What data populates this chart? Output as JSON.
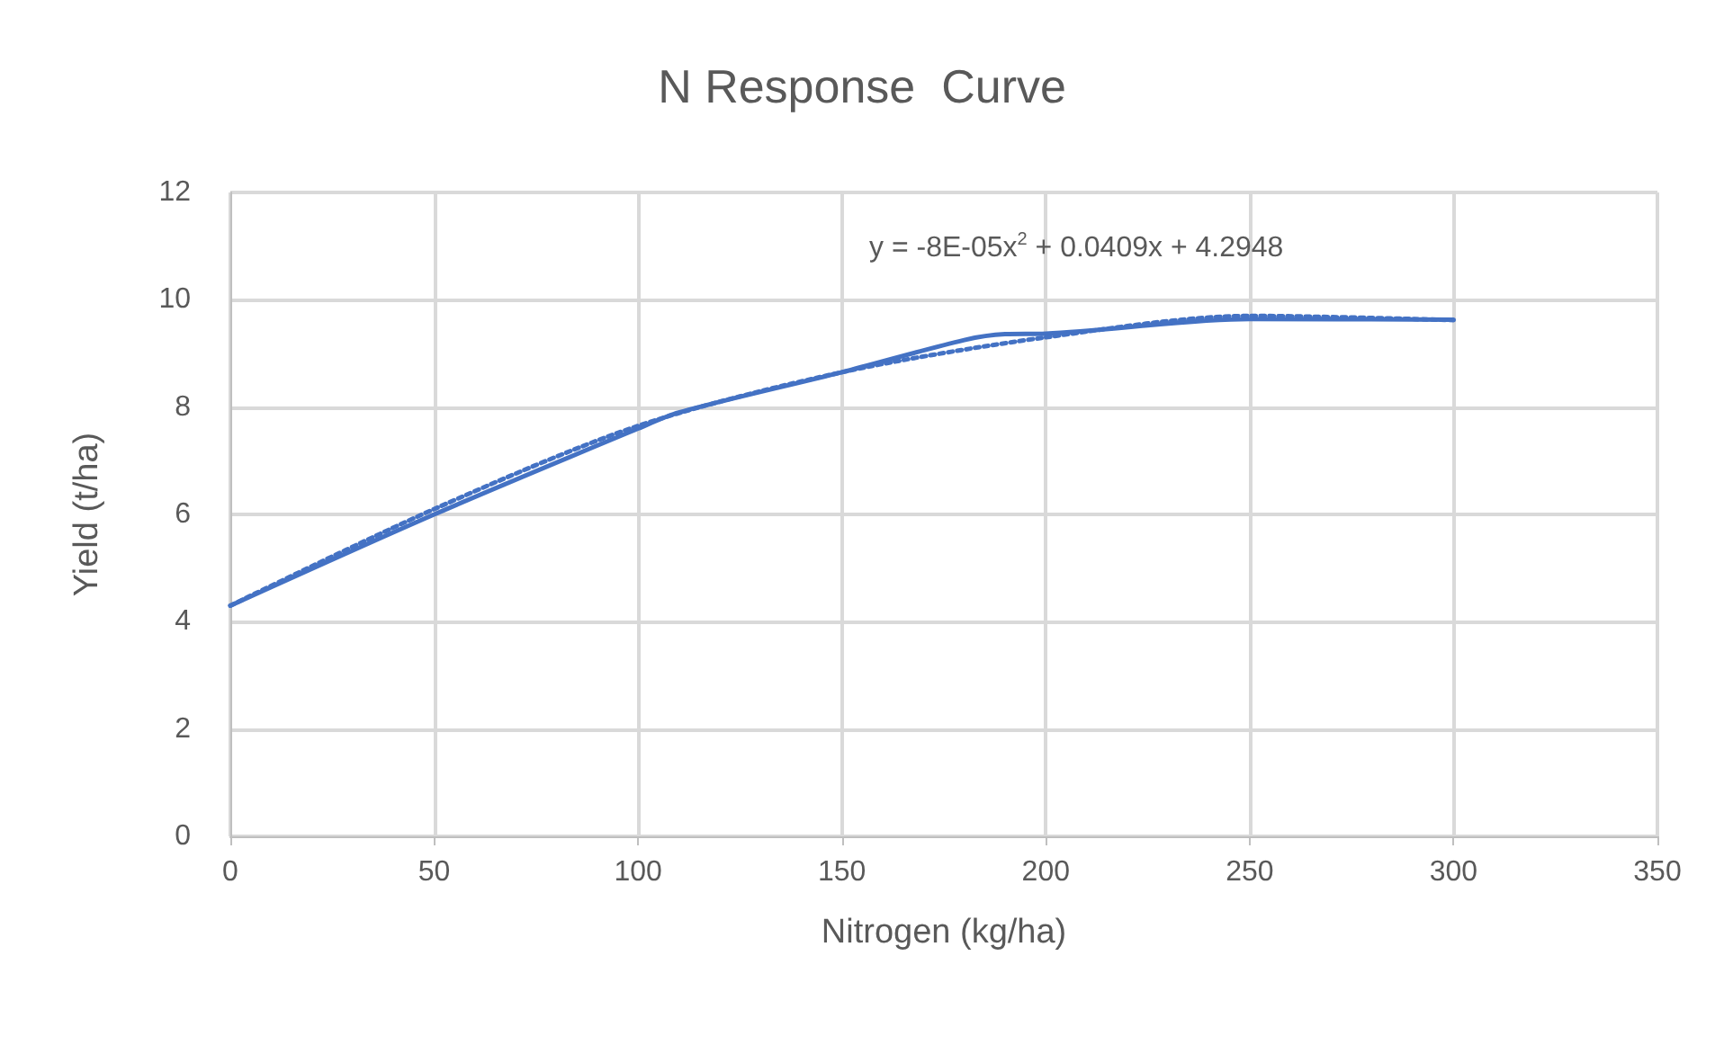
{
  "chart_data": {
    "type": "line",
    "title": "N Response  Curve",
    "xlabel": "Nitrogen (kg/ha)",
    "ylabel": "Yield (t/ha)",
    "x": [
      0,
      50,
      100,
      110,
      150,
      180,
      190,
      200,
      250,
      300
    ],
    "series": [
      {
        "color": "#4472c4",
        "values": [
          4.3,
          6.0,
          7.6,
          7.9,
          8.65,
          9.25,
          9.36,
          9.37,
          9.64,
          9.63
        ],
        "line_style": "solid"
      },
      {
        "type": "line",
        "color": "#4472c4",
        "x": [
          0,
          50,
          100,
          150,
          200,
          250,
          300
        ],
        "values": [
          4.3,
          6.1,
          7.65,
          8.65,
          9.3,
          9.7,
          9.62
        ],
        "line_style": "dotted"
      }
    ],
    "xlim": [
      0,
      350
    ],
    "xticks": [
      0,
      50,
      100,
      150,
      200,
      250,
      300,
      350
    ],
    "ylim": [
      0,
      12
    ],
    "yticks": [
      0,
      2,
      4,
      6,
      8,
      10,
      12
    ],
    "grid": true,
    "marker": "none",
    "annotations": [
      "y = -8E-05x$^{2}$ + 0.0409x + 4.2948"
    ]
  }
}
